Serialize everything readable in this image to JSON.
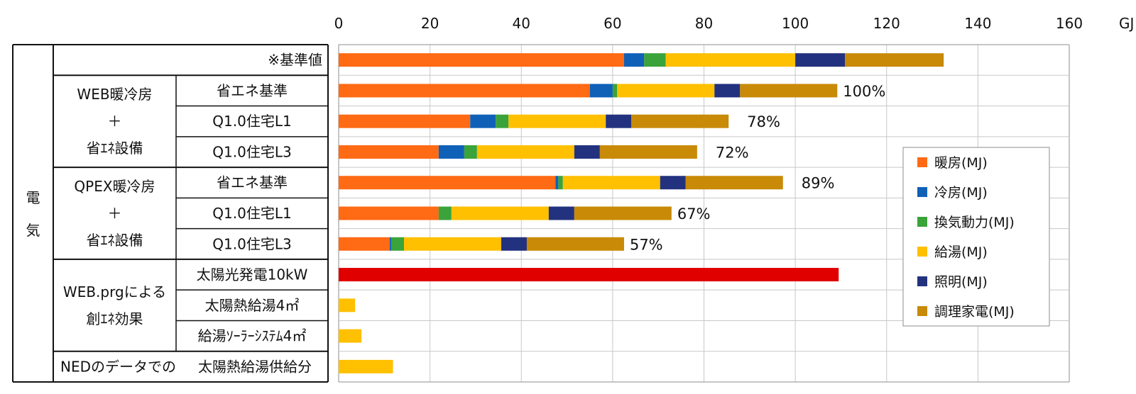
{
  "chart_data": {
    "type": "bar",
    "orientation": "horizontal",
    "stacked": true,
    "xlim": [
      0,
      160
    ],
    "x_ticks": [
      0,
      20,
      40,
      60,
      80,
      100,
      120,
      140,
      160
    ],
    "x_unit": "GJ",
    "grid": true,
    "legend_position": "right",
    "energy_source": "電 気",
    "groups": [
      {
        "label": "",
        "rows": [
          0
        ]
      },
      {
        "label_lines": [
          "WEB暖冷房",
          "＋",
          "省ｴﾈ設備"
        ],
        "rows": [
          1,
          2,
          3
        ]
      },
      {
        "label_lines": [
          "QPEX暖冷房",
          "＋",
          "省ｴﾈ設備"
        ],
        "rows": [
          4,
          5,
          6
        ]
      },
      {
        "label_lines": [
          "WEB.prgによる",
          "創ｴﾈ効果"
        ],
        "rows": [
          7,
          8,
          9
        ]
      },
      {
        "label": "NEDのデータでの",
        "rows": [
          10
        ]
      }
    ],
    "categories": [
      "※基準値",
      "省エネ基準",
      "Q1.0住宅L1",
      "Q1.0住宅L3",
      "省エネ基準",
      "Q1.0住宅L1",
      "Q1.0住宅L3",
      "太陽光発電10kW",
      "太陽熱給湯4㎡",
      "給湯ｿｰﾗｰｼｽﾃﾑ4㎡",
      "太陽熱給湯供給分"
    ],
    "series": [
      {
        "name": "暖房(MJ)",
        "color": "#ff6a14",
        "values": [
          62.5,
          55,
          28.8,
          21.9,
          47.5,
          21.9,
          11.2,
          0,
          0,
          0,
          0
        ]
      },
      {
        "name": "冷房(MJ)",
        "color": "#0f61b8",
        "values": [
          4.4,
          5,
          5.6,
          5.6,
          0.6,
          0,
          0.3,
          0,
          0,
          0,
          0
        ]
      },
      {
        "name": "換気動力(MJ)",
        "color": "#3aa33a",
        "values": [
          4.7,
          1,
          2.8,
          2.8,
          1,
          2.8,
          2.8,
          0,
          0,
          0,
          0
        ]
      },
      {
        "name": "給湯(MJ)",
        "color": "#ffc000",
        "values": [
          28.4,
          21.3,
          21.3,
          21.3,
          21.3,
          21.3,
          21.3,
          0,
          3.6,
          5,
          11.9
        ]
      },
      {
        "name": "照明(MJ)",
        "color": "#23327e",
        "values": [
          10.9,
          5.6,
          5.6,
          5.6,
          5.6,
          5.6,
          5.6,
          0,
          0,
          0,
          0
        ]
      },
      {
        "name": "調理家電(MJ)",
        "color": "#c88a07",
        "values": [
          21.6,
          21.3,
          21.3,
          21.3,
          21.3,
          21.3,
          21.3,
          0,
          0,
          0,
          0
        ]
      },
      {
        "name": "",
        "color": "#e00000",
        "values": [
          0,
          0,
          0,
          0,
          0,
          0,
          0,
          109.5,
          0,
          0,
          0
        ]
      }
    ],
    "annotations": [
      "",
      "100%",
      "78%",
      "72%",
      "89%",
      "67%",
      "57%",
      "",
      "",
      "",
      ""
    ]
  }
}
